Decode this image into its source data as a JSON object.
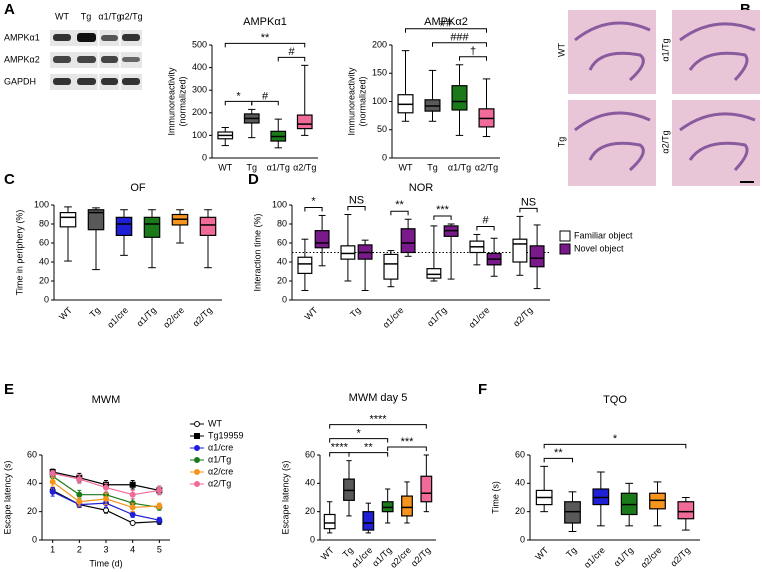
{
  "panel_letters": [
    "A",
    "B",
    "C",
    "D",
    "E",
    "F"
  ],
  "blot": {
    "lanes": [
      "WT",
      "Tg",
      "α1/Tg",
      "α2/Tg"
    ],
    "rows": [
      "AMPKα1",
      "AMPKα2",
      "GAPDH"
    ]
  },
  "histology": {
    "labels": [
      "WT",
      "α1/Tg",
      "Tg",
      "α2/Tg"
    ]
  },
  "chart_data": [
    {
      "type": "box",
      "title": "AMPKα1",
      "ylabel": [
        "Immunoreactivity",
        "(normalized)"
      ],
      "categories": [
        "WT",
        "Tg",
        "α1/Tg",
        "α2/Tg"
      ],
      "colors": [
        "#ffffff",
        "#595959",
        "#1a7a1a",
        "#f06b9a"
      ],
      "ylim": [
        0,
        500
      ],
      "yticks": [
        0,
        100,
        200,
        300,
        400,
        500
      ],
      "values": [
        {
          "min": 55,
          "q1": 85,
          "median": 100,
          "q3": 115,
          "max": 135
        },
        {
          "min": 90,
          "q1": 155,
          "median": 175,
          "q3": 195,
          "max": 215
        },
        {
          "min": 45,
          "q1": 75,
          "median": 95,
          "q3": 118,
          "max": 172
        },
        {
          "min": 100,
          "q1": 130,
          "median": 150,
          "q3": 190,
          "max": 410
        }
      ],
      "annotations": [
        {
          "label": "*",
          "between": [
            "WT",
            "Tg"
          ]
        },
        {
          "label": "#",
          "between": [
            "Tg",
            "α1/Tg"
          ]
        },
        {
          "label": "#",
          "between": [
            "α1/Tg",
            "α2/Tg"
          ]
        },
        {
          "label": "**",
          "between": [
            "WT",
            "α2/Tg"
          ]
        }
      ]
    },
    {
      "type": "box",
      "title": "AMPKα2",
      "ylabel": [
        "Immunoreactivity",
        "(normalized)"
      ],
      "categories": [
        "WT",
        "Tg",
        "α1/Tg",
        "α2/Tg"
      ],
      "colors": [
        "#ffffff",
        "#595959",
        "#1a7a1a",
        "#f06b9a"
      ],
      "ylim": [
        0,
        200
      ],
      "yticks": [
        0,
        50,
        100,
        150,
        200
      ],
      "values": [
        {
          "min": 65,
          "q1": 80,
          "median": 95,
          "q3": 112,
          "max": 190
        },
        {
          "min": 65,
          "q1": 83,
          "median": 92,
          "q3": 103,
          "max": 155
        },
        {
          "min": 40,
          "q1": 85,
          "median": 100,
          "q3": 128,
          "max": 165
        },
        {
          "min": 38,
          "q1": 55,
          "median": 70,
          "q3": 87,
          "max": 140
        }
      ],
      "annotations": [
        {
          "label": "†",
          "between": [
            "α1/Tg",
            "α2/Tg"
          ]
        },
        {
          "label": "###",
          "between": [
            "Tg",
            "α2/Tg"
          ]
        },
        {
          "label": "##",
          "between": [
            "WT",
            "α2/Tg"
          ]
        }
      ]
    },
    {
      "type": "box",
      "title": "OF",
      "ylabel": [
        "Time in periphery (%)"
      ],
      "categories": [
        "WT",
        "Tg",
        "α1/cre",
        "α1/Tg",
        "α2/cre",
        "α2/Tg"
      ],
      "colors": [
        "#ffffff",
        "#595959",
        "#1f1fd6",
        "#1a7a1a",
        "#f7941d",
        "#f06b9a"
      ],
      "ylim": [
        0,
        100
      ],
      "yticks": [
        0,
        20,
        40,
        60,
        80,
        100
      ],
      "values": [
        {
          "min": 41,
          "q1": 77,
          "median": 87,
          "q3": 92,
          "max": 98
        },
        {
          "min": 32,
          "q1": 74,
          "median": 92,
          "q3": 95,
          "max": 97
        },
        {
          "min": 47,
          "q1": 68,
          "median": 80,
          "q3": 87,
          "max": 95
        },
        {
          "min": 34,
          "q1": 66,
          "median": 80,
          "q3": 87,
          "max": 95
        },
        {
          "min": 60,
          "q1": 79,
          "median": 85,
          "q3": 90,
          "max": 95
        },
        {
          "min": 34,
          "q1": 68,
          "median": 79,
          "q3": 87,
          "max": 95
        }
      ]
    },
    {
      "type": "box",
      "title": "NOR",
      "ylabel": [
        "Interaction time (%)"
      ],
      "categories": [
        "WT",
        "Tg",
        "α1/cre",
        "α1/Tg",
        "α1/cre",
        "α2/Tg"
      ],
      "ylim": [
        0,
        100
      ],
      "yticks": [
        0,
        20,
        40,
        60,
        80,
        100
      ],
      "reference": 50,
      "group_labels": [
        "*",
        "NS",
        "**",
        "***",
        "#",
        "NS"
      ],
      "series": [
        {
          "name": "Familiar object",
          "color": "#ffffff",
          "values": [
            {
              "min": 10,
              "q1": 28,
              "median": 38,
              "q3": 45,
              "max": 64
            },
            {
              "min": 20,
              "q1": 43,
              "median": 49,
              "q3": 57,
              "max": 90
            },
            {
              "min": 14,
              "q1": 22,
              "median": 38,
              "q3": 48,
              "max": 52
            },
            {
              "min": 20,
              "q1": 23,
              "median": 27,
              "q3": 33,
              "max": 78
            },
            {
              "min": 37,
              "q1": 50,
              "median": 56,
              "q3": 62,
              "max": 69
            },
            {
              "min": 26,
              "q1": 40,
              "median": 59,
              "q3": 64,
              "max": 88
            }
          ]
        },
        {
          "name": "Novel object",
          "color": "#7a1a8a",
          "values": [
            {
              "min": 36,
              "q1": 55,
              "median": 60,
              "q3": 73,
              "max": 89
            },
            {
              "min": 10,
              "q1": 43,
              "median": 50,
              "q3": 58,
              "max": 63
            },
            {
              "min": 46,
              "q1": 50,
              "median": 60,
              "q3": 75,
              "max": 85
            },
            {
              "min": 22,
              "q1": 67,
              "median": 73,
              "q3": 78,
              "max": 80
            },
            {
              "min": 25,
              "q1": 37,
              "median": 43,
              "q3": 49,
              "max": 65
            },
            {
              "min": 12,
              "q1": 35,
              "median": 44,
              "q3": 57,
              "max": 79
            }
          ]
        }
      ]
    },
    {
      "type": "line",
      "title": "MWM",
      "xlabel": "Time (d)",
      "ylabel": [
        "Escape latency (s)"
      ],
      "x": [
        1,
        2,
        3,
        4,
        5
      ],
      "xlim": [
        0.6,
        5.4
      ],
      "xticks": [
        1,
        2,
        3,
        4,
        5
      ],
      "ylim": [
        0,
        60
      ],
      "yticks": [
        0,
        20,
        40,
        60
      ],
      "series": [
        {
          "name": "WT",
          "color": "#000000",
          "marker": "circle",
          "marker_fill": "#ffffff",
          "values": [
            35,
            25,
            21,
            12,
            13
          ],
          "errors": [
            2,
            2,
            2,
            1,
            2
          ]
        },
        {
          "name": "Tg19959",
          "color": "#000000",
          "marker": "square",
          "marker_fill": "#000000",
          "values": [
            48,
            44,
            39,
            39,
            35
          ],
          "errors": [
            2,
            3,
            3,
            3,
            3
          ]
        },
        {
          "name": "α1/cre",
          "color": "#1f1fd6",
          "marker": "circle",
          "marker_fill": "#1f1fd6",
          "values": [
            34,
            25,
            26,
            18,
            14
          ],
          "errors": [
            3,
            2,
            3,
            2,
            2
          ]
        },
        {
          "name": "α1/Tg",
          "color": "#1a7a1a",
          "marker": "circle",
          "marker_fill": "#1a7a1a",
          "values": [
            45,
            32,
            32,
            26,
            23
          ],
          "errors": [
            3,
            3,
            4,
            3,
            2
          ]
        },
        {
          "name": "α2/cre",
          "color": "#f7941d",
          "marker": "circle",
          "marker_fill": "#f7941d",
          "values": [
            41,
            27,
            29,
            23,
            24
          ],
          "errors": [
            3,
            3,
            4,
            3,
            2
          ]
        },
        {
          "name": "α2/Tg",
          "color": "#f06b9a",
          "marker": "circle",
          "marker_fill": "#f06b9a",
          "values": [
            47,
            43,
            37,
            32,
            35
          ],
          "errors": [
            2,
            3,
            3,
            3,
            3
          ]
        }
      ]
    },
    {
      "type": "box",
      "title": "MWM day 5",
      "ylabel": [
        "Escape latency (s)"
      ],
      "categories": [
        "WT",
        "Tg",
        "α1/cre",
        "α1/Tg",
        "α2/cre",
        "α2/Tg"
      ],
      "colors": [
        "#ffffff",
        "#595959",
        "#1f1fd6",
        "#1a7a1a",
        "#f7941d",
        "#f06b9a"
      ],
      "ylim": [
        0,
        60
      ],
      "yticks": [
        0,
        20,
        40,
        60
      ],
      "values": [
        {
          "min": 5,
          "q1": 8,
          "median": 12,
          "q3": 18,
          "max": 27
        },
        {
          "min": 17,
          "q1": 28,
          "median": 35,
          "q3": 43,
          "max": 56
        },
        {
          "min": 5,
          "q1": 7,
          "median": 12,
          "q3": 20,
          "max": 26
        },
        {
          "min": 12,
          "q1": 20,
          "median": 23,
          "q3": 27,
          "max": 36
        },
        {
          "min": 12,
          "q1": 17,
          "median": 23,
          "q3": 31,
          "max": 41
        },
        {
          "min": 20,
          "q1": 27,
          "median": 33,
          "q3": 45,
          "max": 60
        }
      ],
      "annotations": [
        {
          "label": "****",
          "between": [
            "WT",
            "Tg"
          ]
        },
        {
          "label": "**",
          "between": [
            "Tg",
            "α1/Tg"
          ]
        },
        {
          "label": "***",
          "between": [
            "α1/Tg",
            "α2/Tg"
          ]
        },
        {
          "label": "*",
          "between": [
            "WT",
            "α1/Tg"
          ]
        },
        {
          "label": "****",
          "between": [
            "WT",
            "α2/Tg"
          ]
        }
      ]
    },
    {
      "type": "box",
      "title": "TQO",
      "ylabel": [
        "Time (s)"
      ],
      "categories": [
        "WT",
        "Tg",
        "α1/cre",
        "α1/Tg",
        "α2/cre",
        "α2/Tg"
      ],
      "colors": [
        "#ffffff",
        "#595959",
        "#1f1fd6",
        "#1a7a1a",
        "#f7941d",
        "#f06b9a"
      ],
      "ylim": [
        0,
        60
      ],
      "yticks": [
        0,
        20,
        40,
        60
      ],
      "values": [
        {
          "min": 20,
          "q1": 25,
          "median": 30,
          "q3": 35,
          "max": 52
        },
        {
          "min": 6,
          "q1": 12,
          "median": 20,
          "q3": 27,
          "max": 34
        },
        {
          "min": 10,
          "q1": 25,
          "median": 30,
          "q3": 36,
          "max": 48
        },
        {
          "min": 10,
          "q1": 18,
          "median": 25,
          "q3": 33,
          "max": 40
        },
        {
          "min": 10,
          "q1": 22,
          "median": 28,
          "q3": 33,
          "max": 41
        },
        {
          "min": 7,
          "q1": 15,
          "median": 20,
          "q3": 27,
          "max": 30
        }
      ],
      "annotations": [
        {
          "label": "**",
          "between": [
            "WT",
            "Tg"
          ]
        },
        {
          "label": "*",
          "between": [
            "WT",
            "α2/Tg"
          ]
        }
      ]
    }
  ]
}
